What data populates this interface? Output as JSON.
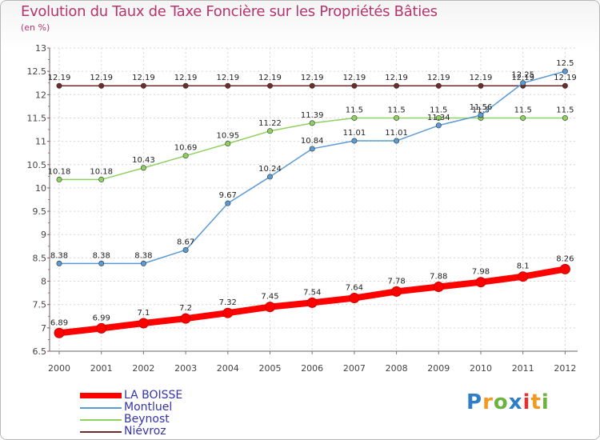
{
  "header": {
    "title": "Evolution du Taux de Taxe Foncière sur les Propriétés Bâties",
    "unit": "(en %)"
  },
  "chart_data": {
    "type": "line",
    "title": "Evolution du Taux de Taxe Foncière sur les Propriétés Bâties",
    "ylabel": "(en %)",
    "xlabel": "",
    "ylim": [
      6.5,
      13
    ],
    "yticks": [
      "6.5",
      "7",
      "7.5",
      "8",
      "8.5",
      "9",
      "9.5",
      "10",
      "10.5",
      "11",
      "11.5",
      "12",
      "12.5",
      "13"
    ],
    "categories": [
      "2000",
      "2001",
      "2002",
      "2003",
      "2004",
      "2005",
      "2006",
      "2007",
      "2008",
      "2009",
      "2010",
      "2011",
      "2012"
    ],
    "grid": true,
    "legend_position": "bottom-left",
    "series": [
      {
        "name": "Niévroz",
        "color": "#702a2a",
        "width": 1.5,
        "labels": [
          "12.19",
          "12.19",
          "12.19",
          "12.19",
          "12.19",
          "12.19",
          "12.19",
          "12.19",
          "12.19",
          "12.19",
          "12.19",
          "12.19",
          "12.19"
        ],
        "values": [
          12.19,
          12.19,
          12.19,
          12.19,
          12.19,
          12.19,
          12.19,
          12.19,
          12.19,
          12.19,
          12.19,
          12.19,
          12.19
        ]
      },
      {
        "name": "Beynost",
        "color": "#8fd160",
        "width": 1.5,
        "labels": [
          "10.18",
          "10.18",
          "10.43",
          "10.69",
          "10.95",
          "11.22",
          "11.39",
          "11.5",
          "11.5",
          "11.5",
          "11.5",
          "11.5",
          "11.5"
        ],
        "values": [
          10.18,
          10.18,
          10.43,
          10.69,
          10.95,
          11.22,
          11.39,
          11.5,
          11.5,
          11.5,
          11.5,
          11.5,
          11.5
        ]
      },
      {
        "name": "Montluel",
        "color": "#5b9bd5",
        "width": 1.5,
        "labels": [
          "8.38",
          "8.38",
          "8.38",
          "8.67",
          "9.67",
          "10.24",
          "10.84",
          "11.01",
          "11.01",
          "11.34",
          "11.56",
          "12.25",
          "12.5"
        ],
        "values": [
          8.38,
          8.38,
          8.38,
          8.67,
          9.67,
          10.24,
          10.84,
          11.01,
          11.01,
          11.34,
          11.56,
          12.25,
          12.5
        ]
      },
      {
        "name": "LA BOISSE",
        "color": "#ff0000",
        "width": 8,
        "labels": [
          "6.89",
          "6.99",
          "7.1",
          "7.2",
          "7.32",
          "7.45",
          "7.54",
          "7.64",
          "7.78",
          "7.88",
          "7.98",
          "8.1",
          "8.26"
        ],
        "values": [
          6.89,
          6.99,
          7.1,
          7.2,
          7.32,
          7.45,
          7.54,
          7.64,
          7.78,
          7.88,
          7.98,
          8.1,
          8.26
        ]
      }
    ]
  },
  "legend": {
    "items": [
      {
        "label": "LA BOISSE",
        "color": "#ff0000"
      },
      {
        "label": "Montluel",
        "color": "#5b9bd5"
      },
      {
        "label": "Beynost",
        "color": "#8fd160"
      },
      {
        "label": "Niévroz",
        "color": "#702a2a"
      }
    ]
  },
  "logo": {
    "letters": [
      "P",
      "r",
      "o",
      "x",
      "i",
      "t",
      "i"
    ],
    "colors": [
      "#2f7fc6",
      "#f29a1f",
      "#6cb33f",
      "#2f7fc6",
      "#e1322f",
      "#f29a1f",
      "#6cb33f"
    ]
  }
}
